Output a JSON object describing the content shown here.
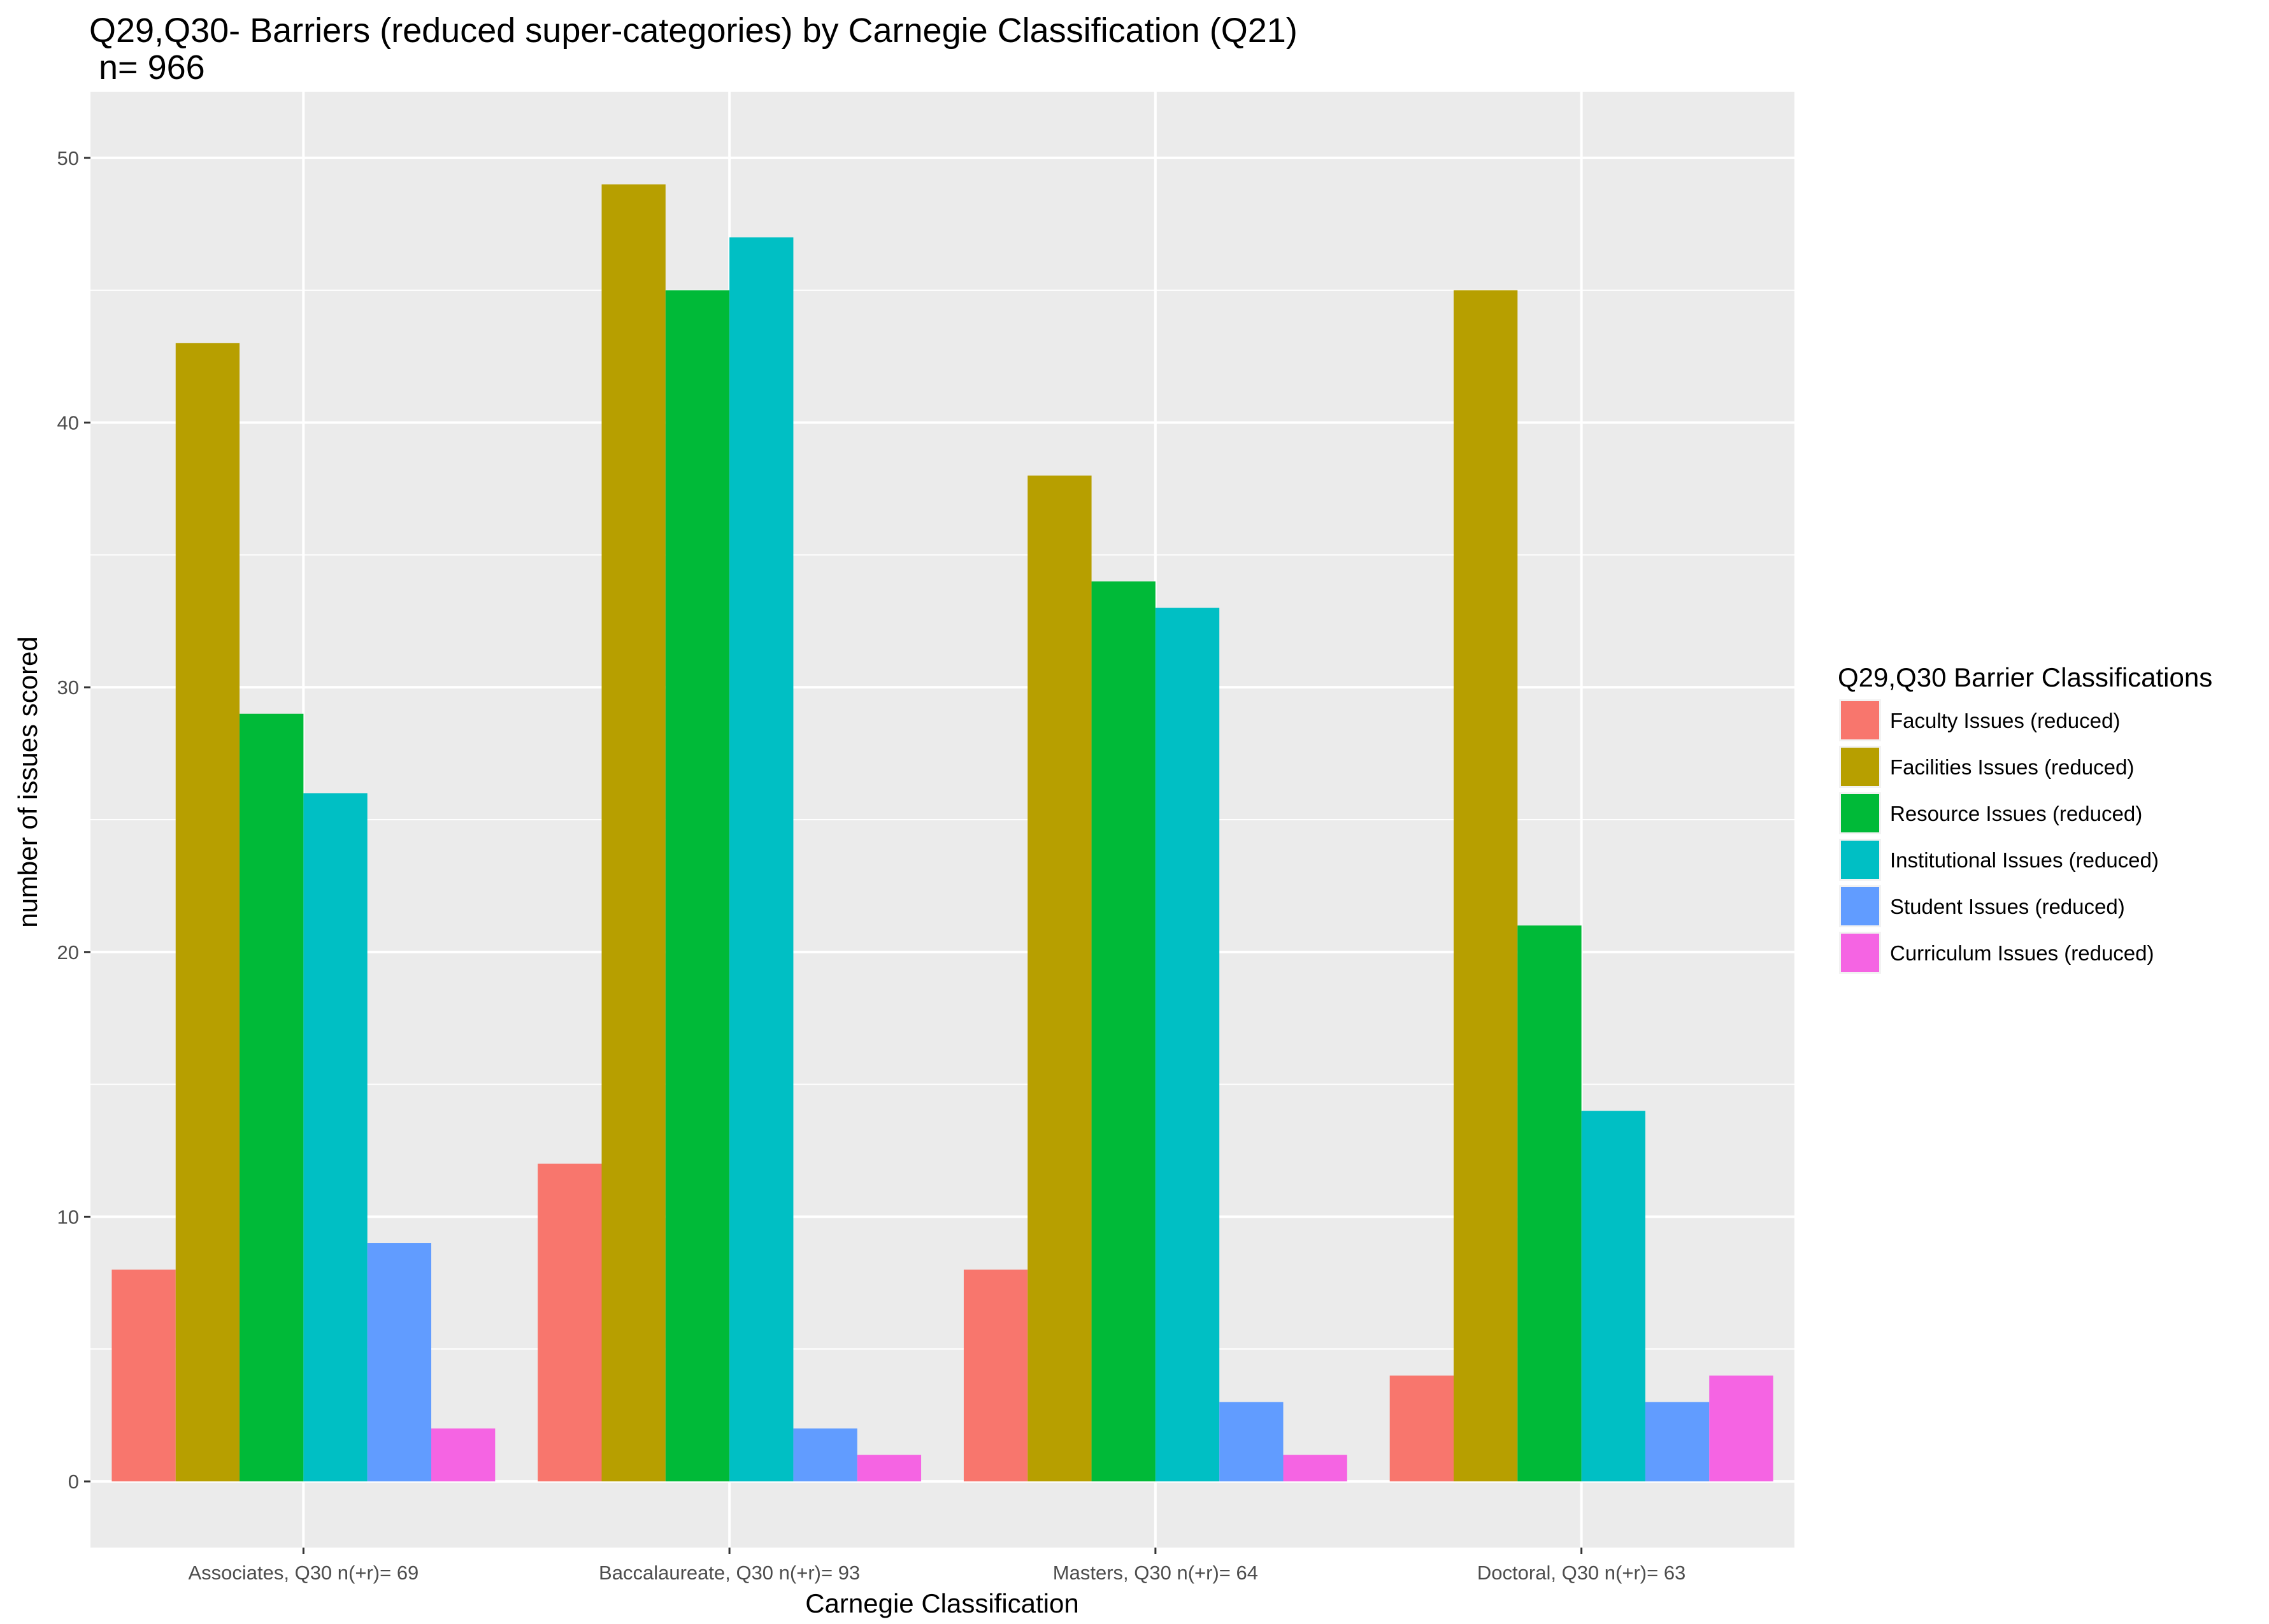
{
  "chart_data": {
    "type": "bar",
    "title": "Q29,Q30- Barriers (reduced super-categories) by Carnegie Classification (Q21)",
    "subtitle": " n= 966",
    "xlabel": "Carnegie Classification",
    "ylabel": "number of issues scored",
    "ylim": [
      -2.5,
      52.5
    ],
    "y_ticks": [
      0,
      10,
      20,
      30,
      40,
      50
    ],
    "grid": true,
    "legend_title": "Q29,Q30 Barrier Classifications",
    "legend_position": "right",
    "categories": [
      "Associates, Q30 n(+r)= 69",
      "Baccalaureate, Q30 n(+r)= 93",
      "Masters, Q30 n(+r)= 64",
      "Doctoral, Q30 n(+r)= 63"
    ],
    "series": [
      {
        "name": "Faculty Issues (reduced)",
        "color": "#F8766D",
        "values": [
          8,
          12,
          8,
          4
        ]
      },
      {
        "name": "Facilities Issues (reduced)",
        "color": "#B79F00",
        "values": [
          43,
          49,
          38,
          45
        ]
      },
      {
        "name": "Resource Issues (reduced)",
        "color": "#00BA38",
        "values": [
          29,
          45,
          34,
          21
        ]
      },
      {
        "name": "Institutional Issues (reduced)",
        "color": "#00BFC4",
        "values": [
          26,
          47,
          33,
          14
        ]
      },
      {
        "name": "Student Issues (reduced)",
        "color": "#619CFF",
        "values": [
          9,
          2,
          3,
          3
        ]
      },
      {
        "name": "Curriculum Issues (reduced)",
        "color": "#F564E3",
        "values": [
          2,
          1,
          1,
          4
        ]
      }
    ]
  }
}
